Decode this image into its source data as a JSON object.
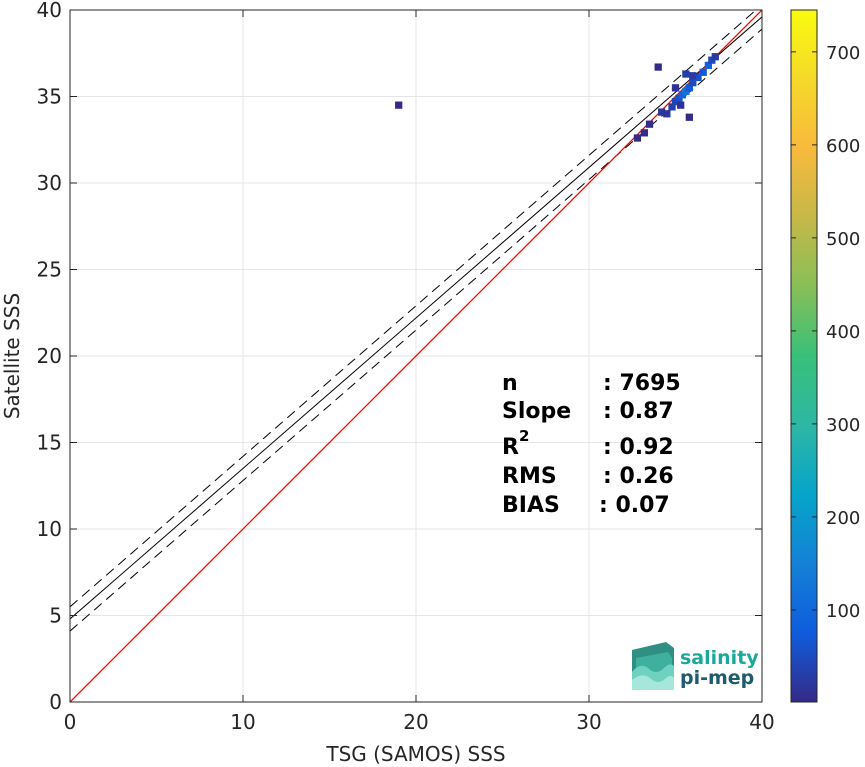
{
  "chart_data": {
    "type": "scatter",
    "xlabel": "TSG (SAMOS) SSS",
    "ylabel": "Satellite SSS",
    "xlim": [
      0,
      40
    ],
    "ylim": [
      0,
      40
    ],
    "xticks": [
      0,
      10,
      20,
      30,
      40
    ],
    "yticks": [
      0,
      5,
      10,
      15,
      20,
      25,
      30,
      35,
      40
    ],
    "grid": true,
    "colorbar": {
      "colormap": "parula",
      "range": [
        1,
        745
      ],
      "ticks": [
        100,
        200,
        300,
        400,
        500,
        600,
        700
      ]
    },
    "identity_line": {
      "from": [
        0,
        0
      ],
      "to": [
        40,
        40
      ],
      "color": "#ff0000"
    },
    "fit_line": {
      "intercept": 4.8,
      "slope": 0.87,
      "color": "#000000"
    },
    "fit_band": {
      "offset": 0.7,
      "color": "#000000",
      "style": "dashed"
    },
    "density_cells": [
      {
        "x": 19.0,
        "y": 34.5,
        "count": 3
      },
      {
        "x": 34.0,
        "y": 36.7,
        "count": 2
      },
      {
        "x": 35.8,
        "y": 33.8,
        "count": 3
      },
      {
        "x": 34.5,
        "y": 34.0,
        "count": 20
      },
      {
        "x": 34.8,
        "y": 34.4,
        "count": 35
      },
      {
        "x": 35.0,
        "y": 34.7,
        "count": 40
      },
      {
        "x": 35.2,
        "y": 34.9,
        "count": 60
      },
      {
        "x": 35.4,
        "y": 35.1,
        "count": 90
      },
      {
        "x": 35.6,
        "y": 35.3,
        "count": 120
      },
      {
        "x": 35.8,
        "y": 35.5,
        "count": 80
      },
      {
        "x": 36.0,
        "y": 35.8,
        "count": 50
      },
      {
        "x": 36.3,
        "y": 36.1,
        "count": 60
      },
      {
        "x": 36.6,
        "y": 36.4,
        "count": 70
      },
      {
        "x": 36.9,
        "y": 36.8,
        "count": 90
      },
      {
        "x": 37.1,
        "y": 37.1,
        "count": 45
      },
      {
        "x": 35.6,
        "y": 36.3,
        "count": 30
      },
      {
        "x": 36.0,
        "y": 36.2,
        "count": 25
      },
      {
        "x": 35.0,
        "y": 35.5,
        "count": 15
      },
      {
        "x": 34.2,
        "y": 34.1,
        "count": 18
      },
      {
        "x": 35.3,
        "y": 34.5,
        "count": 12
      },
      {
        "x": 33.5,
        "y": 33.4,
        "count": 6
      },
      {
        "x": 33.2,
        "y": 32.9,
        "count": 4
      },
      {
        "x": 32.8,
        "y": 32.6,
        "count": 3
      },
      {
        "x": 37.3,
        "y": 37.3,
        "count": 25
      }
    ]
  },
  "stats": {
    "n_label": "n",
    "n_value": ": 7695",
    "slope_label": "Slope",
    "slope_value": ": 0.87",
    "r2_label": "R",
    "r2_sup": "2",
    "r2_value": ": 0.92",
    "rms_label": "RMS",
    "rms_value": ": 0.26",
    "bias_label": "BIAS",
    "bias_value": ": 0.07"
  },
  "logo": {
    "line1": "salinity",
    "line2": "pi-mep",
    "color1": "#1aa89a",
    "color2": "#1e5b6e"
  }
}
